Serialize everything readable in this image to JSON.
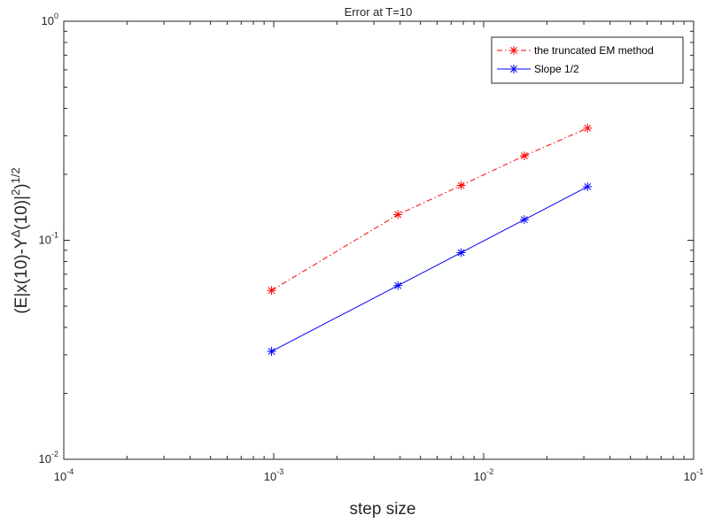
{
  "chart_data": {
    "type": "line",
    "title": "Error at T=10",
    "xlabel": "step size",
    "ylabel": {
      "main": "(E|x(10)-Y",
      "sup_delta": "Δ",
      "mid": "(10)|",
      "sup_two": "2",
      "close": ")",
      "sup_half": "1/2"
    },
    "x_scale": "log",
    "y_scale": "log",
    "xlim": [
      0.0001,
      0.1
    ],
    "ylim": [
      0.01,
      1
    ],
    "grid": false,
    "legend_position": "top-right",
    "x_ticks": [
      {
        "value": 0.0001,
        "base": "10",
        "exp": "-4"
      },
      {
        "value": 0.001,
        "base": "10",
        "exp": "-3"
      },
      {
        "value": 0.01,
        "base": "10",
        "exp": "-2"
      },
      {
        "value": 0.1,
        "base": "10",
        "exp": "-1"
      }
    ],
    "y_ticks": [
      {
        "value": 0.01,
        "base": "10",
        "exp": "-2"
      },
      {
        "value": 0.1,
        "base": "10",
        "exp": "-1"
      },
      {
        "value": 1,
        "base": "10",
        "exp": "0"
      }
    ],
    "x": [
      0.0009765625,
      0.00390625,
      0.0078125,
      0.015625,
      0.03125
    ],
    "series": [
      {
        "name": "the truncated EM method",
        "values": [
          0.059,
          0.131,
          0.178,
          0.243,
          0.325
        ],
        "color": "#ff0000",
        "line_style": "dash-dot",
        "marker": "asterisk"
      },
      {
        "name": "Slope 1/2",
        "values": [
          0.0311,
          0.0621,
          0.0878,
          0.1242,
          0.1756
        ],
        "color": "#0000ff",
        "line_style": "solid",
        "marker": "asterisk"
      }
    ]
  }
}
